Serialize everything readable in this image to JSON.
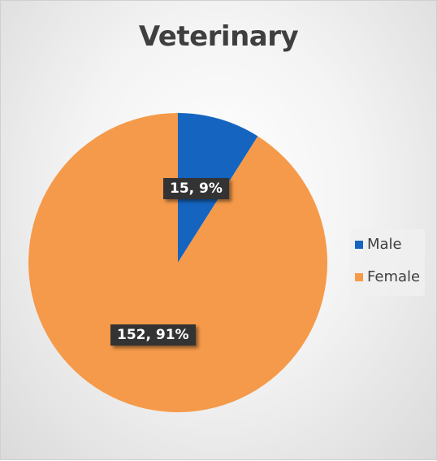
{
  "chart_data": {
    "type": "pie",
    "title": "Veterinary",
    "categories": [
      "Male",
      "Female"
    ],
    "values": [
      15,
      152
    ],
    "percentages": [
      9,
      91
    ],
    "data_labels": [
      "15, 9%",
      "152, 91%"
    ],
    "colors": [
      "#1565c0",
      "#f59a4a"
    ],
    "legend": {
      "placement": "right",
      "entries": [
        "Male",
        "Female"
      ]
    }
  }
}
